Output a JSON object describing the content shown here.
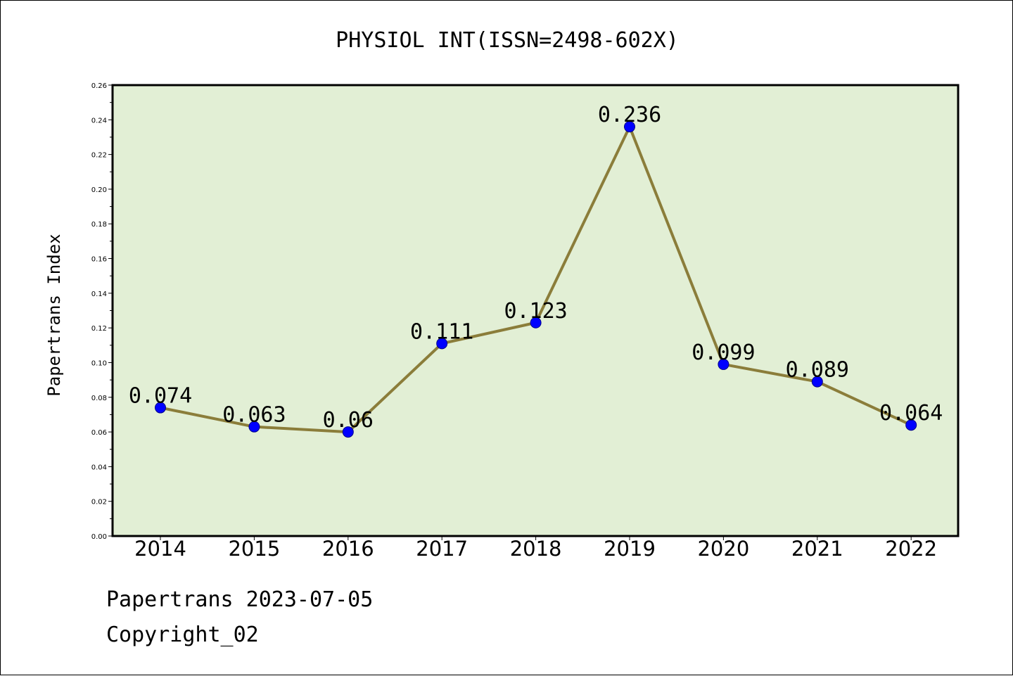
{
  "chart_data": {
    "type": "line",
    "title": "PHYSIOL INT(ISSN=2498-602X)",
    "xlabel": "",
    "ylabel": "Papertrans Index",
    "categories": [
      "2014",
      "2015",
      "2016",
      "2017",
      "2018",
      "2019",
      "2020",
      "2021",
      "2022"
    ],
    "values": [
      0.074,
      0.063,
      0.06,
      0.111,
      0.123,
      0.236,
      0.099,
      0.089,
      0.064
    ],
    "data_labels": [
      "0.074",
      "0.063",
      "0.06",
      "0.111",
      "0.123",
      "0.236",
      "0.099",
      "0.089",
      "0.064"
    ],
    "ylim": [
      0,
      0.26
    ],
    "yticks": [
      "0.00",
      "0.02",
      "0.04",
      "0.06",
      "0.08",
      "0.10",
      "0.12",
      "0.14",
      "0.16",
      "0.18",
      "0.20",
      "0.22",
      "0.24",
      "0.26"
    ],
    "grid": false,
    "plot_background": "#e2efd5",
    "line_color": "#8b7d3a",
    "marker_color": "#0000ff"
  },
  "footer": {
    "source": "Papertrans 2023-07-05",
    "copyright": "Copyright_02"
  }
}
